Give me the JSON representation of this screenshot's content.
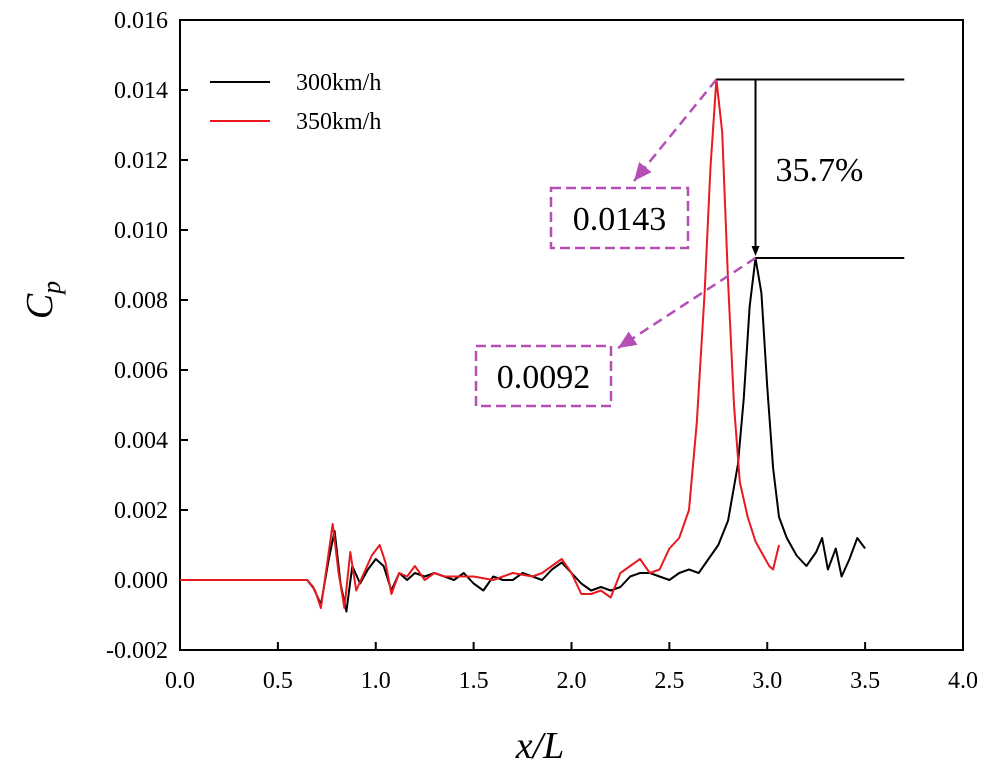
{
  "chart_data": {
    "type": "line",
    "title": "",
    "xlabel": "x/L",
    "ylabel": "C",
    "ylabel_sub": "p",
    "xlim": [
      0.0,
      4.0
    ],
    "ylim": [
      -0.002,
      0.016
    ],
    "x_ticks": [
      0.0,
      0.5,
      1.0,
      1.5,
      2.0,
      2.5,
      3.0,
      3.5,
      4.0
    ],
    "x_tick_labels": [
      "0.0",
      "0.5",
      "1.0",
      "1.5",
      "2.0",
      "2.5",
      "3.0",
      "3.5",
      "4.0"
    ],
    "y_ticks": [
      -0.002,
      0.0,
      0.002,
      0.004,
      0.006,
      0.008,
      0.01,
      0.012,
      0.014,
      0.016
    ],
    "y_tick_labels": [
      "-0.002",
      "0.000",
      "0.002",
      "0.004",
      "0.006",
      "0.008",
      "0.010",
      "0.012",
      "0.014",
      "0.016"
    ],
    "grid": false,
    "legend_position": "top-left",
    "series": [
      {
        "name": "300km/h",
        "color": "#000000",
        "x": [
          0.0,
          0.65,
          0.68,
          0.72,
          0.76,
          0.79,
          0.82,
          0.85,
          0.88,
          0.92,
          0.96,
          1.0,
          1.04,
          1.08,
          1.12,
          1.16,
          1.2,
          1.25,
          1.3,
          1.35,
          1.4,
          1.45,
          1.5,
          1.55,
          1.6,
          1.65,
          1.7,
          1.75,
          1.8,
          1.85,
          1.9,
          1.95,
          2.0,
          2.05,
          2.1,
          2.15,
          2.2,
          2.25,
          2.3,
          2.35,
          2.4,
          2.45,
          2.5,
          2.55,
          2.6,
          2.65,
          2.7,
          2.75,
          2.8,
          2.85,
          2.88,
          2.91,
          2.94,
          2.97,
          3.0,
          3.03,
          3.06,
          3.1,
          3.15,
          3.2,
          3.25,
          3.28,
          3.31,
          3.35,
          3.38,
          3.42,
          3.46,
          3.5
        ],
        "y": [
          0.0,
          0.0,
          -0.0002,
          -0.0007,
          0.0006,
          0.0014,
          -0.0001,
          -0.0009,
          0.0004,
          -0.0001,
          0.0003,
          0.0006,
          0.0004,
          -0.0003,
          0.0002,
          0.0,
          0.0002,
          0.0001,
          0.0002,
          0.0001,
          0.0,
          0.0002,
          -0.0001,
          -0.0003,
          0.0001,
          0.0,
          0.0,
          0.0002,
          0.0001,
          0.0,
          0.0003,
          0.0005,
          0.0002,
          -0.0001,
          -0.0003,
          -0.0002,
          -0.0003,
          -0.0002,
          0.0001,
          0.0002,
          0.0002,
          0.0001,
          0.0,
          0.0002,
          0.0003,
          0.0002,
          0.0006,
          0.001,
          0.0017,
          0.0033,
          0.0052,
          0.0078,
          0.0092,
          0.0082,
          0.0055,
          0.0032,
          0.0018,
          0.0012,
          0.0007,
          0.0004,
          0.0008,
          0.0012,
          0.0003,
          0.0009,
          0.0001,
          0.0006,
          0.0012,
          0.0009
        ]
      },
      {
        "name": "350km/h",
        "color": "#e8191f",
        "x": [
          0.0,
          0.65,
          0.69,
          0.72,
          0.75,
          0.78,
          0.81,
          0.84,
          0.87,
          0.9,
          0.94,
          0.98,
          1.02,
          1.05,
          1.08,
          1.12,
          1.16,
          1.2,
          1.25,
          1.3,
          1.35,
          1.4,
          1.5,
          1.6,
          1.7,
          1.8,
          1.85,
          1.9,
          1.95,
          2.0,
          2.05,
          2.1,
          2.15,
          2.2,
          2.25,
          2.3,
          2.35,
          2.4,
          2.45,
          2.5,
          2.55,
          2.6,
          2.64,
          2.68,
          2.71,
          2.74,
          2.77,
          2.8,
          2.83,
          2.86,
          2.9,
          2.94,
          2.98,
          3.01,
          3.03,
          3.06
        ],
        "y": [
          0.0,
          0.0,
          -0.0003,
          -0.0008,
          0.0004,
          0.0016,
          0.0002,
          -0.0008,
          0.0008,
          -0.0003,
          0.0002,
          0.0007,
          0.001,
          0.0005,
          -0.0004,
          0.0002,
          0.0001,
          0.0004,
          0.0,
          0.0002,
          0.0001,
          0.0001,
          0.0001,
          0.0,
          0.0002,
          0.0001,
          0.0002,
          0.0004,
          0.0006,
          0.0002,
          -0.0004,
          -0.0004,
          -0.0003,
          -0.0005,
          0.0002,
          0.0004,
          0.0006,
          0.0002,
          0.0003,
          0.0009,
          0.0012,
          0.002,
          0.0045,
          0.0082,
          0.0118,
          0.0143,
          0.0128,
          0.0085,
          0.005,
          0.0028,
          0.0018,
          0.0011,
          0.0007,
          0.0004,
          0.0003,
          0.001
        ]
      }
    ],
    "annotations": {
      "peak_300_label": "0.0092",
      "peak_350_label": "0.0143",
      "difference_label": "35.7%",
      "peak_300": {
        "x": 2.94,
        "y": 0.0092
      },
      "peak_350": {
        "x": 2.74,
        "y": 0.0143
      },
      "ref_line_end_x": 3.7,
      "accent_color": "#b54fb5"
    }
  }
}
